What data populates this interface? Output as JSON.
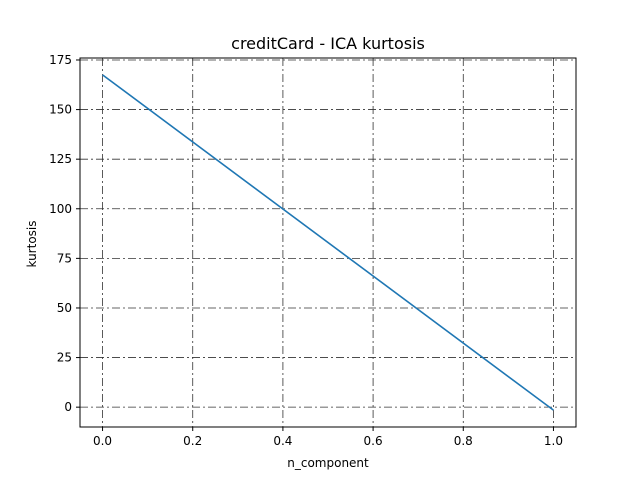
{
  "chart_data": {
    "type": "line",
    "title": "creditCard - ICA kurtosis",
    "xlabel": "n_component",
    "ylabel": "kurtosis",
    "xlim": [
      -0.05,
      1.05
    ],
    "ylim": [
      -10,
      176
    ],
    "xticks": [
      0.0,
      0.2,
      0.4,
      0.6,
      0.8,
      1.0
    ],
    "xtick_labels": [
      "0.0",
      "0.2",
      "0.4",
      "0.6",
      "0.8",
      "1.0"
    ],
    "yticks": [
      0,
      25,
      50,
      75,
      100,
      125,
      150,
      175
    ],
    "ytick_labels": [
      "0",
      "25",
      "50",
      "75",
      "100",
      "125",
      "150",
      "175"
    ],
    "grid": true,
    "grid_style": "dashdot",
    "series": [
      {
        "color": "#1f77b4",
        "x": [
          0.0,
          1.0
        ],
        "y": [
          167.5,
          -1.5
        ]
      }
    ]
  }
}
